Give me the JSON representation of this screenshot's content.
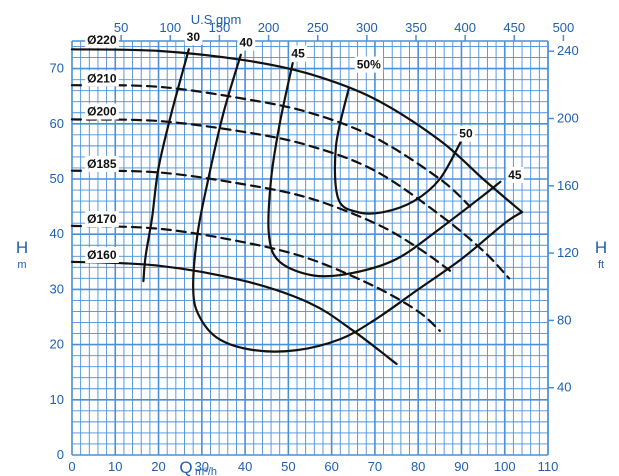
{
  "chart_data": {
    "type": "line",
    "colors": {
      "grid": "#4a90d9",
      "text": "#1f5fb0",
      "curve": "#111111"
    },
    "x_axis_bottom": {
      "quantity": "Q",
      "unit": "m³/h",
      "range": [
        0,
        110
      ],
      "ticks": [
        0,
        10,
        20,
        30,
        40,
        50,
        60,
        70,
        80,
        90,
        100,
        110
      ]
    },
    "x_axis_top": {
      "unit": "U.S.gpm",
      "ticks": [
        50,
        100,
        150,
        200,
        250,
        300,
        350,
        400,
        450,
        500
      ]
    },
    "y_axis_left": {
      "quantity": "H",
      "unit": "m",
      "range": [
        0,
        75
      ],
      "ticks": [
        0,
        10,
        20,
        30,
        40,
        50,
        60,
        70
      ]
    },
    "y_axis_right": {
      "quantity": "H",
      "unit": "ft",
      "ticks": [
        40,
        80,
        120,
        160,
        200,
        240
      ]
    },
    "grid": true,
    "impeller_curves": [
      {
        "name": "Ø220",
        "style": "solid",
        "x": [
          0,
          20,
          40,
          55,
          70,
          85,
          95,
          104
        ],
        "y": [
          73.5,
          73.2,
          71.5,
          69,
          64.5,
          57,
          50,
          44
        ]
      },
      {
        "name": "Ø210",
        "style": "dashed",
        "x": [
          0,
          20,
          40,
          55,
          70,
          85,
          92
        ],
        "y": [
          67,
          66.7,
          64.5,
          62,
          57.5,
          50,
          45
        ]
      },
      {
        "name": "Ø200",
        "style": "dashed",
        "x": [
          0,
          20,
          40,
          55,
          70,
          85,
          95,
          101
        ],
        "y": [
          60.8,
          60.5,
          58.5,
          56,
          51.5,
          43.5,
          37,
          32
        ]
      },
      {
        "name": "Ø185",
        "style": "dashed",
        "x": [
          0,
          20,
          40,
          55,
          70,
          80,
          88
        ],
        "y": [
          51.5,
          51.2,
          49,
          46.5,
          42,
          37.5,
          33
        ]
      },
      {
        "name": "Ø170",
        "style": "dashed",
        "x": [
          0,
          20,
          40,
          55,
          70,
          80,
          85
        ],
        "y": [
          41.5,
          41,
          38.5,
          35.5,
          30.5,
          26,
          22.5
        ]
      },
      {
        "name": "Ø160",
        "style": "solid",
        "x": [
          0,
          20,
          40,
          55,
          65,
          75
        ],
        "y": [
          35,
          34.3,
          31.5,
          27.5,
          22.5,
          16.5
        ]
      }
    ],
    "efficiency_curves": [
      {
        "label": "30",
        "x": [
          27,
          23,
          20,
          18.5,
          17,
          16.5
        ],
        "y": [
          73.5,
          62,
          52,
          43,
          36,
          31.5
        ]
      },
      {
        "label": "40",
        "x": [
          39,
          35,
          31.5,
          29,
          28,
          29.5,
          34,
          42,
          52,
          62,
          70,
          80,
          90,
          100,
          104
        ],
        "y": [
          72.5,
          62,
          50,
          40,
          30,
          25,
          21,
          19,
          19,
          21,
          24.5,
          30,
          35.5,
          42,
          44
        ]
      },
      {
        "label": "45",
        "x": [
          51,
          48,
          46,
          45.5,
          48,
          56,
          65,
          75,
          85,
          95,
          99
        ],
        "y": [
          71,
          60,
          50,
          40,
          35,
          32.5,
          33,
          35.5,
          41,
          47,
          49.5
        ]
      },
      {
        "label": "50",
        "x": [
          64,
          61,
          61.5,
          66,
          72,
          79,
          85,
          90
        ],
        "y": [
          66.5,
          56,
          46.5,
          44,
          44,
          46,
          50,
          57
        ]
      }
    ],
    "labels": [
      {
        "text": "Ø220",
        "x": 3.5,
        "y": 74.5
      },
      {
        "text": "Ø210",
        "x": 3.5,
        "y": 67.5
      },
      {
        "text": "Ø200",
        "x": 3.5,
        "y": 61.5
      },
      {
        "text": "Ø185",
        "x": 3.5,
        "y": 52
      },
      {
        "text": "Ø170",
        "x": 3.5,
        "y": 42
      },
      {
        "text": "Ø160",
        "x": 3.5,
        "y": 35.5
      },
      {
        "text": "30",
        "x": 26.5,
        "y": 75
      },
      {
        "text": "40",
        "x": 38.7,
        "y": 74
      },
      {
        "text": "45",
        "x": 50.7,
        "y": 72
      },
      {
        "text": "50%",
        "x": 65.8,
        "y": 70
      },
      {
        "text": "50",
        "x": 89.5,
        "y": 57.5
      },
      {
        "text": "45",
        "x": 100.8,
        "y": 50
      }
    ]
  }
}
